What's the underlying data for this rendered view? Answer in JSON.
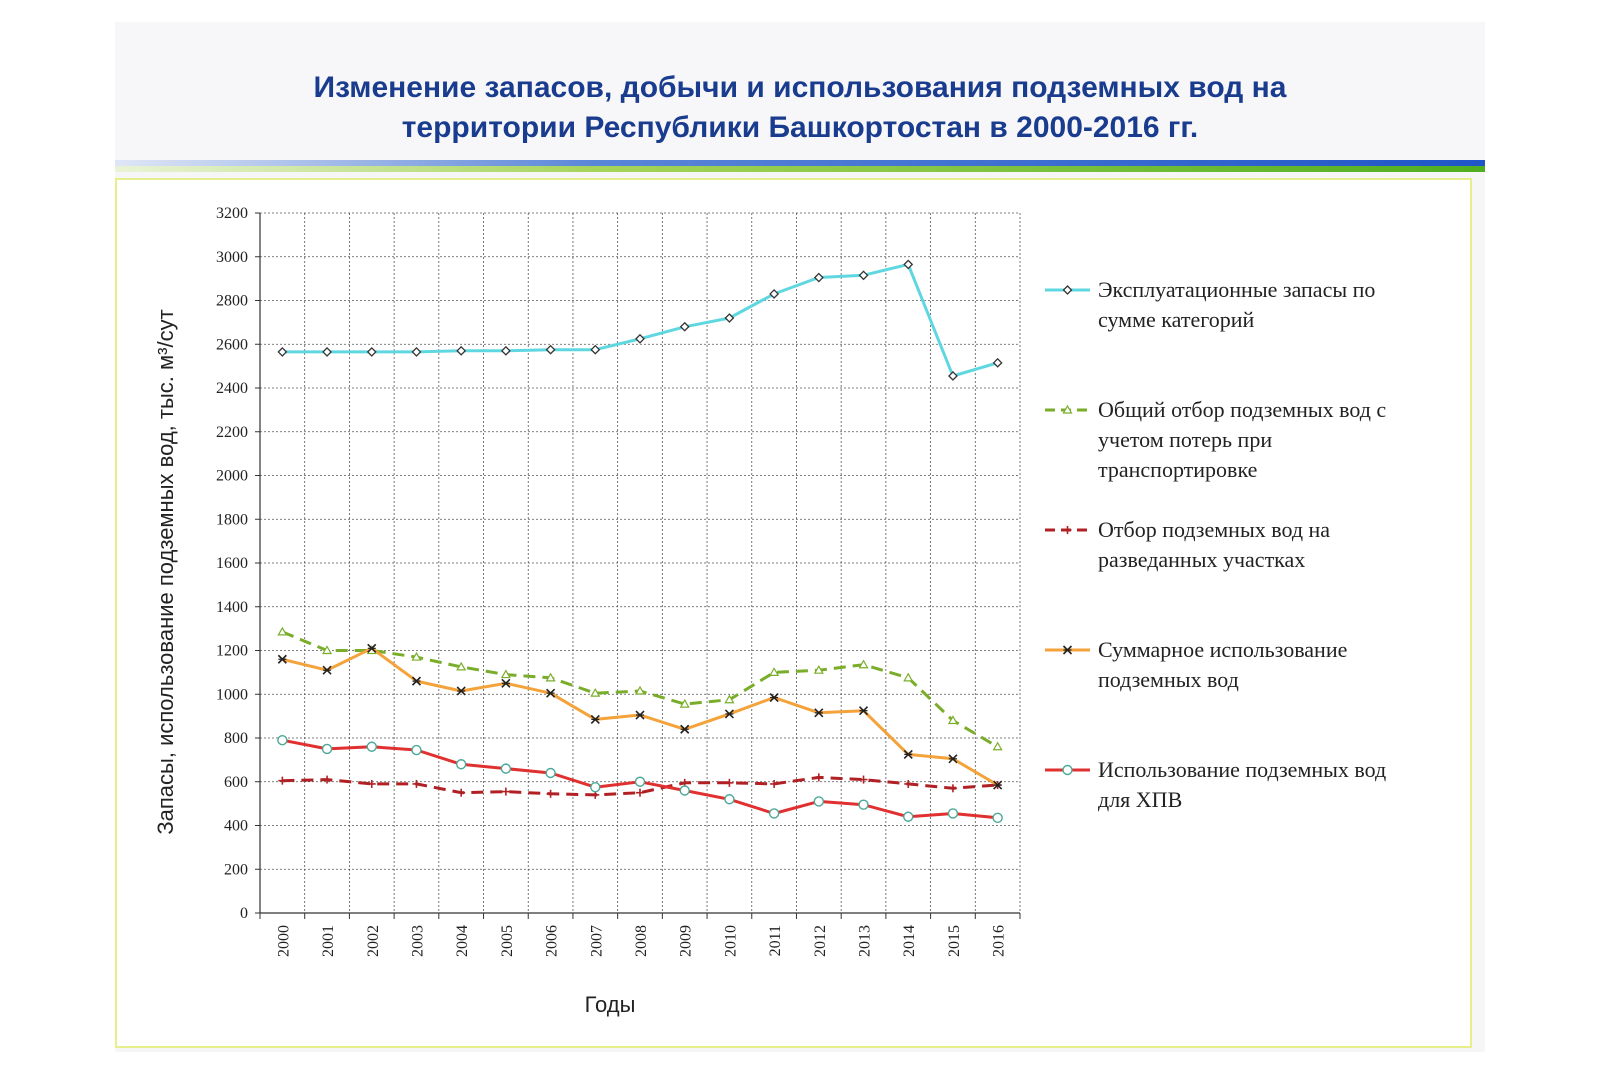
{
  "page": {
    "title_line1": "Изменение запасов, добычи и использования подземных вод  на",
    "title_line2": "территории Республики Башкортостан в 2000-2016 гг."
  },
  "chart_data": {
    "type": "line",
    "title": "Изменение запасов, добычи и использования подземных вод  на территории Республики Башкортостан в 2000-2016 гг.",
    "xlabel": "Годы",
    "ylabel": "Запасы, использование подземных вод, тыс. м³/сут",
    "ylim": [
      0,
      3200
    ],
    "y_ticks": [
      0,
      200,
      400,
      600,
      800,
      1000,
      1200,
      1400,
      1600,
      1800,
      2000,
      2200,
      2400,
      2600,
      2800,
      3000,
      3200
    ],
    "grid": true,
    "legend_position": "right",
    "categories": [
      "2000",
      "2001",
      "2002",
      "2003",
      "2004",
      "2005",
      "2006",
      "2007",
      "2008",
      "2009",
      "2010",
      "2011",
      "2012",
      "2013",
      "2014",
      "2015",
      "2016"
    ],
    "series": [
      {
        "name_lines": [
          "Эксплуатационные запасы по",
          "сумме категорий"
        ],
        "color": "#5fd7e0",
        "style": "solid",
        "marker": "diamond",
        "values": [
          2565,
          2565,
          2565,
          2565,
          2570,
          2570,
          2575,
          2575,
          2625,
          2680,
          2720,
          2830,
          2905,
          2915,
          2965,
          2455,
          2515
        ]
      },
      {
        "name_lines": [
          "Общий отбор подземных вод с",
          "учетом потерь при",
          "транспортировке"
        ],
        "color": "#7aae2a",
        "style": "dashed",
        "marker": "triangle",
        "values": [
          1285,
          1200,
          1200,
          1170,
          1125,
          1090,
          1075,
          1005,
          1015,
          955,
          975,
          1100,
          1110,
          1135,
          1075,
          880,
          760
        ]
      },
      {
        "name_lines": [
          "Отбор подземных вод на",
          "разведанных участках"
        ],
        "color": "#b02025",
        "style": "dashed",
        "marker": "plus",
        "values": [
          605,
          610,
          590,
          590,
          550,
          555,
          545,
          540,
          550,
          595,
          595,
          590,
          620,
          610,
          590,
          570,
          585
        ]
      },
      {
        "name_lines": [
          "Суммарное использование",
          "подземных вод"
        ],
        "color": "#f4a23a",
        "style": "solid",
        "marker": "star",
        "values": [
          1160,
          1110,
          1210,
          1060,
          1015,
          1050,
          1005,
          885,
          905,
          840,
          910,
          985,
          915,
          925,
          725,
          705,
          585
        ]
      },
      {
        "name_lines": [
          "Использование подземных вод",
          "для ХПВ"
        ],
        "color": "#e03030",
        "style": "solid",
        "marker": "circle",
        "values": [
          790,
          750,
          760,
          745,
          680,
          660,
          640,
          575,
          600,
          560,
          520,
          455,
          510,
          495,
          440,
          455,
          435
        ]
      }
    ]
  }
}
